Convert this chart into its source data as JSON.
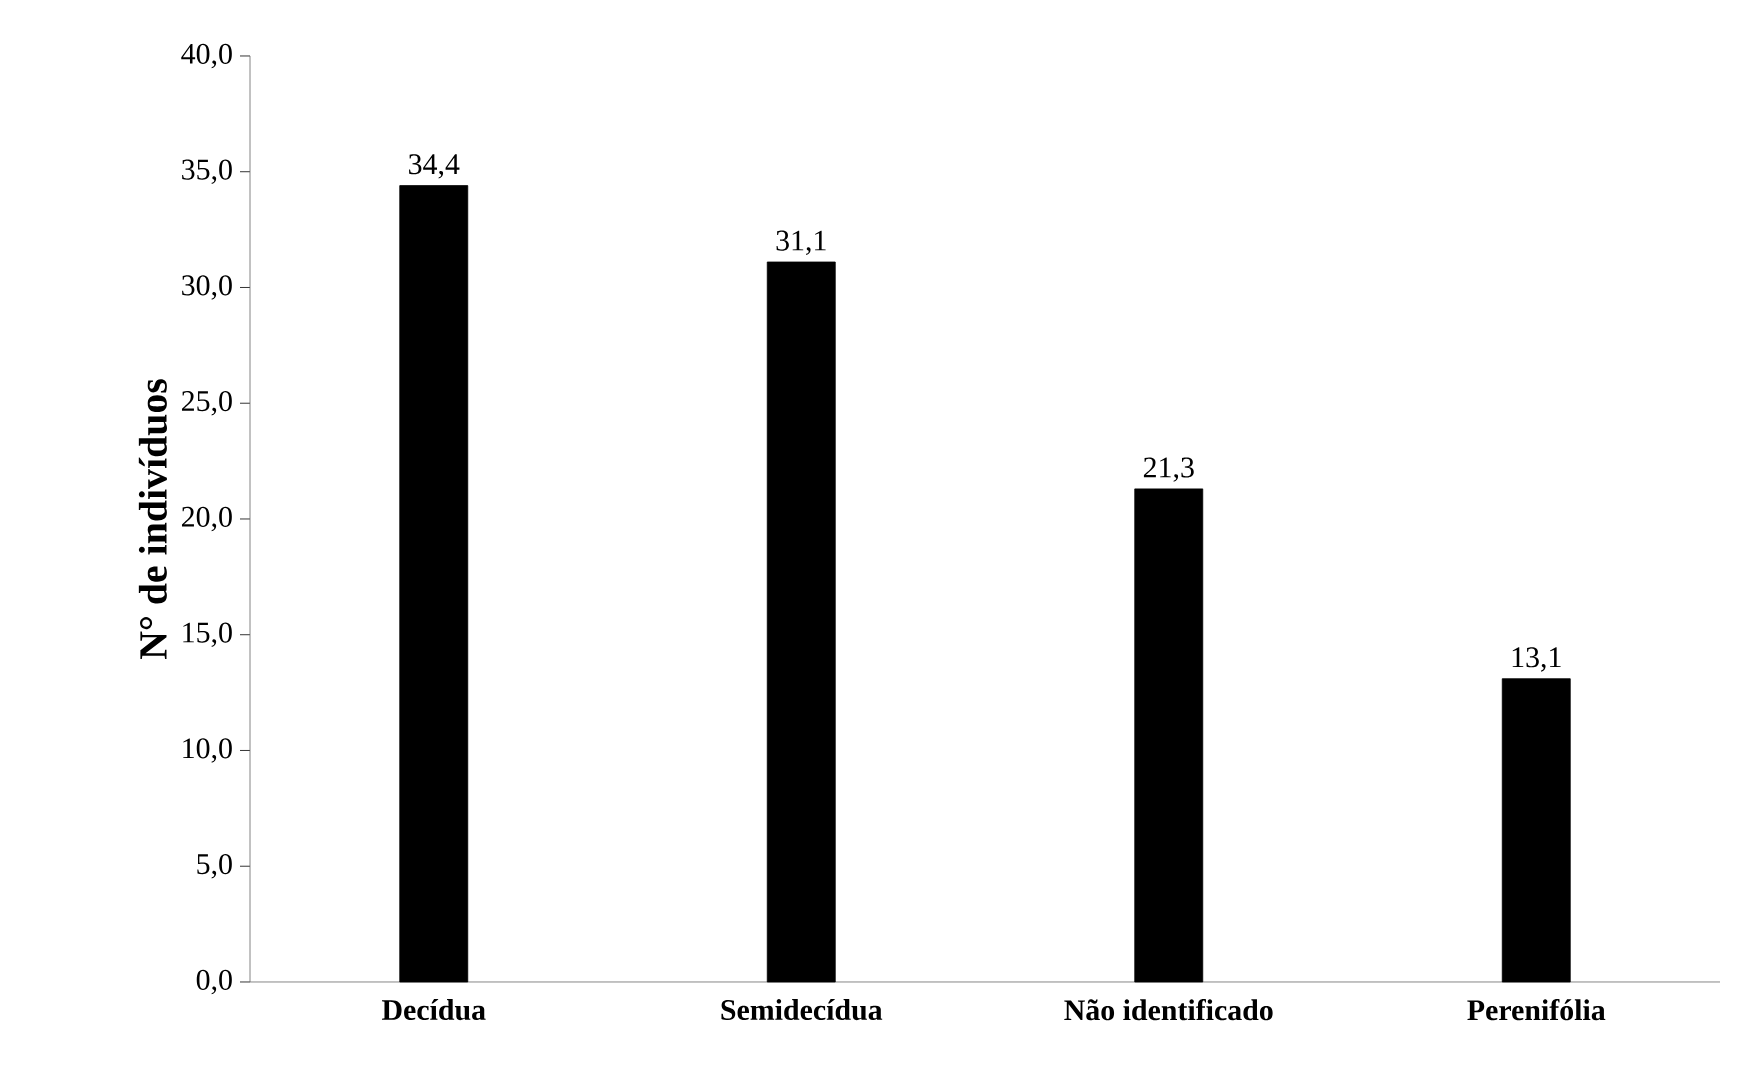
{
  "chart_data": {
    "type": "bar",
    "ylabel": "N° de indivíduos",
    "categories": [
      "Decídua",
      "Semidecídua",
      "Não identificado",
      "Perenifólia"
    ],
    "values": [
      34.4,
      31.1,
      21.3,
      13.1
    ],
    "value_labels": [
      "34,4",
      "31,1",
      "21,3",
      "13,1"
    ],
    "color": "#000000",
    "ylim": [
      0,
      40
    ],
    "yticks": [
      {
        "value": 0,
        "label": "0,0"
      },
      {
        "value": 5,
        "label": "5,0"
      },
      {
        "value": 10,
        "label": "10,0"
      },
      {
        "value": 15,
        "label": "15,0"
      },
      {
        "value": 20,
        "label": "20,0"
      },
      {
        "value": 25,
        "label": "25,0"
      },
      {
        "value": 30,
        "label": "30,0"
      },
      {
        "value": 35,
        "label": "35,0"
      },
      {
        "value": 40,
        "label": "40,0"
      }
    ],
    "grid": false
  }
}
